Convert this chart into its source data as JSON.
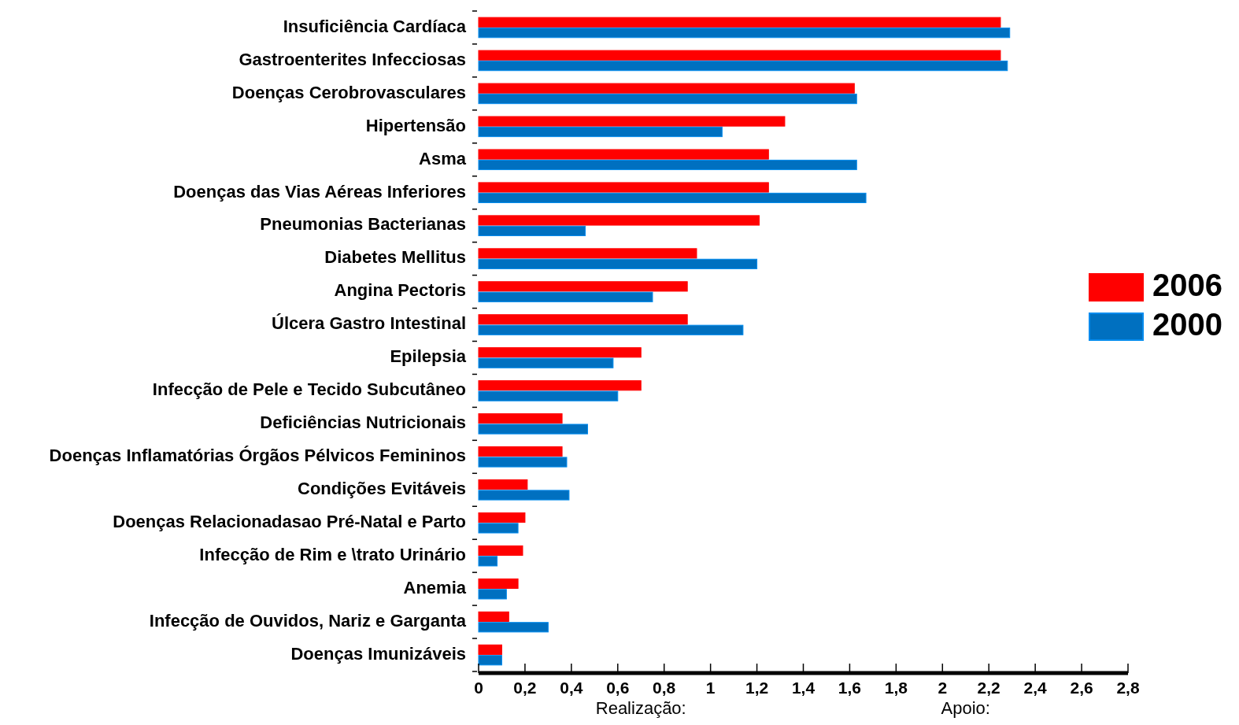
{
  "chart_data": {
    "type": "bar",
    "orientation": "horizontal",
    "categories": [
      "Insuficiência Cardíaca",
      "Gastroenterites Infecciosas",
      "Doenças Cerobrovasculares",
      "Hipertensão",
      "Asma",
      "Doenças das Vias Aéreas Inferiores",
      "Pneumonias Bacterianas",
      "Diabetes Mellitus",
      "Angina Pectoris",
      "Úlcera Gastro Intestinal",
      "Epilepsia",
      "Infecção de Pele e Tecido Subcutâneo",
      "Deficiências Nutricionais",
      "Doenças Inflamatórias Órgãos Pélvicos Femininos",
      "Condições Evitáveis",
      "Doenças Relacionadasao Pré-Natal e Parto",
      "Infecção de Rim e \\trato Urinário",
      "Anemia",
      "Infecção de Ouvidos, Nariz e Garganta",
      "Doenças Imunizáveis"
    ],
    "series": [
      {
        "name": "2006",
        "color": "#ff0000",
        "values": [
          2.25,
          2.25,
          1.62,
          1.32,
          1.25,
          1.25,
          1.21,
          0.94,
          0.9,
          0.9,
          0.7,
          0.7,
          0.36,
          0.36,
          0.21,
          0.2,
          0.19,
          0.17,
          0.13,
          0.1
        ]
      },
      {
        "name": "2000",
        "color": "#0070c0",
        "values": [
          2.29,
          2.28,
          1.63,
          1.05,
          1.63,
          1.67,
          0.46,
          1.2,
          0.75,
          1.14,
          0.58,
          0.6,
          0.47,
          0.38,
          0.39,
          0.17,
          0.08,
          0.12,
          0.3,
          0.1
        ]
      }
    ],
    "xlim": [
      0,
      2.8
    ],
    "xticks": [
      0,
      {
        "value": 0.2,
        "label": "0,2"
      },
      {
        "value": 0.4,
        "label": "0,4"
      },
      {
        "value": 0.6,
        "label": "0,6"
      },
      {
        "value": 0.8,
        "label": "0,8"
      },
      1,
      {
        "value": 1.2,
        "label": "1,2"
      },
      {
        "value": 1.4,
        "label": "1,4"
      },
      {
        "value": 1.6,
        "label": "1,6"
      },
      {
        "value": 1.8,
        "label": "1,8"
      },
      2,
      {
        "value": 2.2,
        "label": "2,2"
      },
      {
        "value": 2.4,
        "label": "2,4"
      },
      {
        "value": 2.6,
        "label": "2,6"
      },
      {
        "value": 2.8,
        "label": "2,8"
      }
    ],
    "legend": "right",
    "annotations": [
      "Realização:",
      "Apoio:"
    ]
  }
}
